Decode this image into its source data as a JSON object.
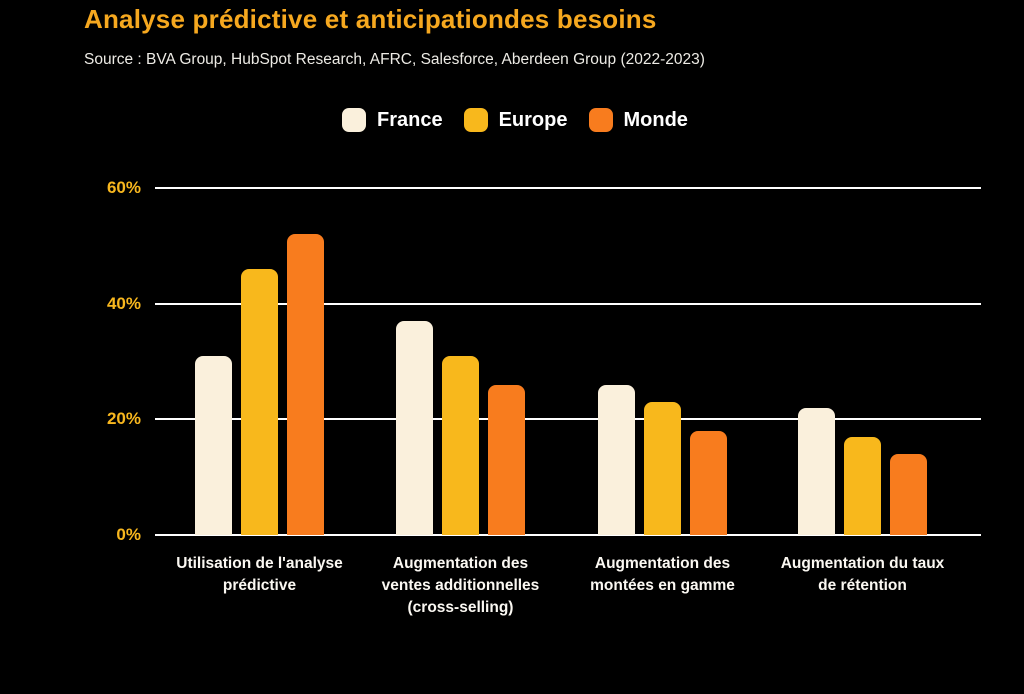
{
  "header": {
    "title": "Analyse prédictive et anticipationdes besoins",
    "source": "Source : BVA Group, HubSpot Research, AFRC, Salesforce, Aberdeen Group (2022-2023)"
  },
  "colors": {
    "background": "#000000",
    "title": "#F6A81F",
    "tick_labels": "#F8B71E",
    "gridline": "#FFFFFF",
    "category_labels": "#FBF8F2",
    "legend_text": "#FFFFFF"
  },
  "chart_data": {
    "type": "bar",
    "title": "Analyse prédictive et anticipationdes besoins",
    "subtitle": "Source : BVA Group, HubSpot Research, AFRC, Salesforce, Aberdeen Group (2022-2023)",
    "categories": [
      "Utilisation de l'analyse prédictive",
      "Augmentation des ventes additionnelles (cross-selling)",
      "Augmentation des montées en gamme",
      "Augmentation du taux de rétention"
    ],
    "categories_wrapped": [
      [
        "Utilisation de l'analyse",
        "prédictive"
      ],
      [
        "Augmentation des",
        "ventes additionnelles",
        "(cross-selling)"
      ],
      [
        "Augmentation des",
        "montées en gamme"
      ],
      [
        "Augmentation du taux",
        "de rétention"
      ]
    ],
    "series": [
      {
        "name": "France",
        "color": "#FAF0DC",
        "values": [
          31,
          37,
          26,
          22
        ]
      },
      {
        "name": "Europe",
        "color": "#F8B81C",
        "values": [
          46,
          31,
          23,
          17
        ]
      },
      {
        "name": "Monde",
        "color": "#F87C1E",
        "values": [
          52,
          26,
          18,
          14
        ]
      }
    ],
    "xlabel": "",
    "ylabel": "",
    "ylim": [
      0,
      60
    ],
    "yticks": [
      {
        "value": 60,
        "label": "60%"
      },
      {
        "value": 40,
        "label": "40%"
      },
      {
        "value": 20,
        "label": "20%"
      },
      {
        "value": 0,
        "label": "0%"
      }
    ],
    "grid": "horizontal",
    "legend_position": "top"
  }
}
